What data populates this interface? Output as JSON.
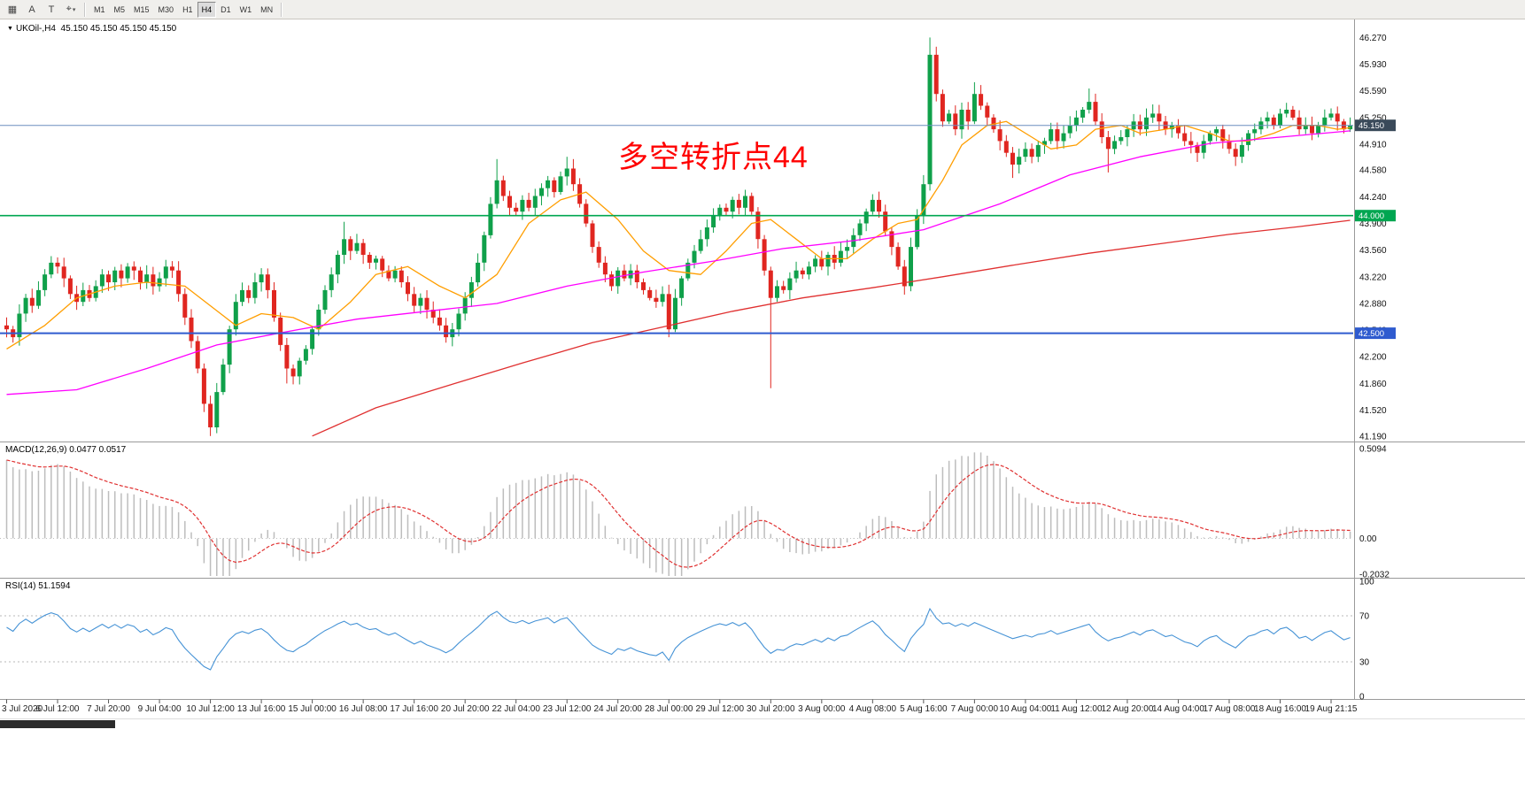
{
  "toolbar": {
    "left_icons": [
      {
        "name": "chart-window-icon",
        "glyph": "▦",
        "caret": false
      },
      {
        "name": "text-label-icon",
        "glyph": "A",
        "caret": false
      },
      {
        "name": "text-tool-icon",
        "glyph": "T",
        "caret": false
      },
      {
        "name": "draw-tools-icon",
        "glyph": "⌖",
        "caret": true
      }
    ],
    "timeframes": [
      "M1",
      "M5",
      "M15",
      "M30",
      "H1",
      "H4",
      "D1",
      "W1",
      "MN"
    ],
    "active_timeframe": "H4"
  },
  "symbol_header": {
    "collapse_glyph": "▼",
    "symbol": "UKOil-,H4",
    "ohlc": "45.150 45.150 45.150 45.150"
  },
  "annotation": {
    "text": "多空转折点44",
    "color": "#FF0000"
  },
  "levels": {
    "current": {
      "label": "45.150",
      "value": 45.15,
      "line_color": "#6C8EBF",
      "tag_bg": "#3A4A5A"
    },
    "green": {
      "label": "44.000",
      "value": 44.0,
      "color": "#00A651"
    },
    "blue": {
      "label": "42.500",
      "value": 42.5,
      "color": "#2F5BCF"
    }
  },
  "macd_panel": {
    "title": "MACD(12,26,9) 0.0477 0.0517",
    "axis_labels": [
      {
        "text": "0.5094",
        "value": 0.5094
      },
      {
        "text": "0.00",
        "value": 0
      },
      {
        "text": "-0.2032",
        "value": -0.2032
      }
    ],
    "bar_color": "#BDBDBD",
    "signal_color": "#E03131"
  },
  "rsi_panel": {
    "title": "RSI(14) 51.1594",
    "axis_labels": [
      {
        "text": "100",
        "value": 100
      },
      {
        "text": "70",
        "value": 70
      },
      {
        "text": "30",
        "value": 30
      },
      {
        "text": "0",
        "value": 0
      }
    ],
    "levels": [
      70,
      30
    ],
    "line_color": "#4693D6"
  },
  "chart_data": {
    "type": "candlestick",
    "symbol": "UKOil-",
    "timeframe": "H4",
    "current_price": 45.15,
    "ylim": [
      41.12,
      46.5
    ],
    "price_ticks": [
      "46.270",
      "45.930",
      "45.590",
      "45.250",
      "44.910",
      "44.580",
      "44.240",
      "43.900",
      "43.560",
      "43.220",
      "42.880",
      "42.540",
      "42.200",
      "41.860",
      "41.520",
      "41.190"
    ],
    "up_color": "#0FA04A",
    "down_color": "#E02620",
    "first_open": 42.6,
    "closes": [
      42.55,
      42.45,
      42.75,
      42.95,
      42.85,
      43.05,
      43.25,
      43.4,
      43.35,
      43.2,
      43.0,
      42.9,
      43.05,
      42.95,
      43.1,
      43.25,
      43.15,
      43.3,
      43.2,
      43.35,
      43.3,
      43.15,
      43.25,
      43.1,
      43.2,
      43.35,
      43.3,
      43.0,
      42.7,
      42.4,
      42.05,
      41.6,
      41.3,
      41.75,
      42.1,
      42.55,
      42.9,
      43.05,
      42.95,
      43.15,
      43.25,
      43.05,
      42.7,
      42.35,
      42.05,
      41.95,
      42.15,
      42.3,
      42.55,
      42.8,
      43.05,
      43.25,
      43.5,
      43.7,
      43.55,
      43.65,
      43.5,
      43.4,
      43.45,
      43.3,
      43.2,
      43.3,
      43.15,
      43.0,
      42.85,
      42.95,
      42.8,
      42.7,
      42.6,
      42.45,
      42.55,
      42.75,
      42.95,
      43.15,
      43.4,
      43.75,
      44.15,
      44.45,
      44.25,
      44.1,
      44.05,
      44.2,
      44.1,
      44.25,
      44.35,
      44.45,
      44.3,
      44.5,
      44.6,
      44.4,
      44.15,
      43.9,
      43.6,
      43.4,
      43.25,
      43.1,
      43.3,
      43.2,
      43.3,
      43.15,
      43.05,
      42.95,
      42.9,
      43.0,
      42.55,
      42.95,
      43.2,
      43.4,
      43.55,
      43.7,
      43.85,
      44.0,
      44.1,
      44.05,
      44.2,
      44.1,
      44.25,
      44.05,
      43.7,
      43.3,
      42.95,
      43.1,
      43.05,
      43.2,
      43.3,
      43.25,
      43.35,
      43.45,
      43.35,
      43.5,
      43.4,
      43.55,
      43.6,
      43.75,
      43.9,
      44.05,
      44.2,
      44.05,
      43.8,
      43.6,
      43.35,
      43.1,
      43.6,
      44.0,
      44.4,
      46.05,
      45.55,
      45.2,
      45.3,
      45.1,
      45.35,
      45.2,
      45.55,
      45.4,
      45.25,
      45.1,
      44.95,
      44.8,
      44.65,
      44.75,
      44.85,
      44.75,
      44.9,
      44.95,
      45.1,
      44.95,
      45.05,
      45.15,
      45.25,
      45.35,
      45.45,
      45.2,
      45.0,
      44.85,
      44.95,
      45.0,
      45.1,
      45.2,
      45.1,
      45.25,
      45.3,
      45.2,
      45.1,
      45.15,
      45.05,
      44.95,
      44.9,
      44.8,
      44.95,
      45.05,
      45.1,
      44.95,
      44.85,
      44.75,
      44.9,
      45.05,
      45.1,
      45.2,
      45.25,
      45.15,
      45.3,
      45.35,
      45.25,
      45.1,
      45.15,
      45.05,
      45.15,
      45.25,
      45.3,
      45.2,
      45.1,
      45.15
    ],
    "wick_overrides": {
      "32": {
        "l": 41.19
      },
      "44": {
        "l": 41.86
      },
      "53": {
        "h": 43.92
      },
      "69": {
        "l": 42.38
      },
      "77": {
        "h": 44.72
      },
      "88": {
        "h": 44.75
      },
      "104": {
        "l": 42.45
      },
      "120": {
        "l": 41.8
      },
      "145": {
        "h": 46.27
      },
      "152": {
        "h": 45.7
      },
      "158": {
        "l": 44.48
      },
      "170": {
        "h": 45.62
      },
      "173": {
        "l": 44.55
      }
    },
    "moving_averages": [
      {
        "name": "ma-fast",
        "color": "#FF9E00",
        "points": [
          [
            0,
            42.3
          ],
          [
            6,
            42.6
          ],
          [
            11,
            42.95
          ],
          [
            17,
            43.1
          ],
          [
            22,
            43.15
          ],
          [
            28,
            43.1
          ],
          [
            32,
            42.85
          ],
          [
            36,
            42.6
          ],
          [
            40,
            42.75
          ],
          [
            45,
            42.7
          ],
          [
            49,
            42.55
          ],
          [
            54,
            42.9
          ],
          [
            58,
            43.25
          ],
          [
            63,
            43.35
          ],
          [
            68,
            43.1
          ],
          [
            72,
            42.95
          ],
          [
            77,
            43.25
          ],
          [
            82,
            43.9
          ],
          [
            87,
            44.2
          ],
          [
            91,
            44.3
          ],
          [
            96,
            43.95
          ],
          [
            100,
            43.55
          ],
          [
            104,
            43.3
          ],
          [
            109,
            43.25
          ],
          [
            113,
            43.55
          ],
          [
            117,
            43.9
          ],
          [
            120,
            43.95
          ],
          [
            124,
            43.7
          ],
          [
            128,
            43.45
          ],
          [
            132,
            43.45
          ],
          [
            136,
            43.7
          ],
          [
            140,
            43.9
          ],
          [
            143,
            43.95
          ],
          [
            147,
            44.45
          ],
          [
            150,
            44.9
          ],
          [
            154,
            45.15
          ],
          [
            157,
            45.2
          ],
          [
            161,
            45.0
          ],
          [
            164,
            44.85
          ],
          [
            168,
            44.9
          ],
          [
            171,
            45.1
          ],
          [
            175,
            45.15
          ],
          [
            178,
            45.05
          ],
          [
            182,
            45.1
          ],
          [
            185,
            45.15
          ],
          [
            189,
            45.05
          ],
          [
            192,
            44.95
          ],
          [
            195,
            44.95
          ],
          [
            199,
            45.05
          ],
          [
            202,
            45.15
          ],
          [
            206,
            45.15
          ],
          [
            209,
            45.1
          ],
          [
            211,
            45.12
          ]
        ]
      },
      {
        "name": "ma-mid",
        "color": "#FF00FF",
        "points": [
          [
            0,
            41.72
          ],
          [
            11,
            41.78
          ],
          [
            22,
            42.05
          ],
          [
            33,
            42.35
          ],
          [
            44,
            42.52
          ],
          [
            55,
            42.68
          ],
          [
            66,
            42.78
          ],
          [
            77,
            42.88
          ],
          [
            88,
            43.1
          ],
          [
            100,
            43.28
          ],
          [
            111,
            43.42
          ],
          [
            122,
            43.58
          ],
          [
            133,
            43.68
          ],
          [
            144,
            43.82
          ],
          [
            156,
            44.15
          ],
          [
            167,
            44.52
          ],
          [
            178,
            44.75
          ],
          [
            189,
            44.92
          ],
          [
            200,
            45.0
          ],
          [
            211,
            45.08
          ]
        ]
      },
      {
        "name": "ma-slow",
        "color": "#E03030",
        "points": [
          [
            48,
            41.19
          ],
          [
            58,
            41.55
          ],
          [
            70,
            41.85
          ],
          [
            81,
            42.12
          ],
          [
            92,
            42.38
          ],
          [
            103,
            42.58
          ],
          [
            114,
            42.78
          ],
          [
            125,
            42.95
          ],
          [
            136,
            43.08
          ],
          [
            147,
            43.22
          ],
          [
            159,
            43.38
          ],
          [
            170,
            43.52
          ],
          [
            181,
            43.64
          ],
          [
            192,
            43.76
          ],
          [
            203,
            43.86
          ],
          [
            211,
            43.94
          ]
        ]
      }
    ],
    "macd": {
      "fast": 12,
      "slow": 26,
      "signal": 9,
      "current_main": 0.0477,
      "current_signal": 0.0517,
      "scale_max": 0.5094,
      "scale_min": -0.2032
    },
    "rsi": {
      "period": 14,
      "current": 51.1594
    },
    "time_labels": [
      "3 Jul 2020",
      "6 Jul 12:00",
      "7 Jul 20:00",
      "9 Jul 04:00",
      "10 Jul 12:00",
      "13 Jul 16:00",
      "15 Jul 00:00",
      "16 Jul 08:00",
      "17 Jul 16:00",
      "20 Jul 20:00",
      "22 Jul 04:00",
      "23 Jul 12:00",
      "24 Jul 20:00",
      "28 Jul 00:00",
      "29 Jul 12:00",
      "30 Jul 20:00",
      "3 Aug 00:00",
      "4 Aug 08:00",
      "5 Aug 16:00",
      "7 Aug 00:00",
      "10 Aug 04:00",
      "11 Aug 12:00",
      "12 Aug 20:00",
      "14 Aug 04:00",
      "17 Aug 08:00",
      "18 Aug 16:00",
      "19 Aug 21:15"
    ]
  }
}
